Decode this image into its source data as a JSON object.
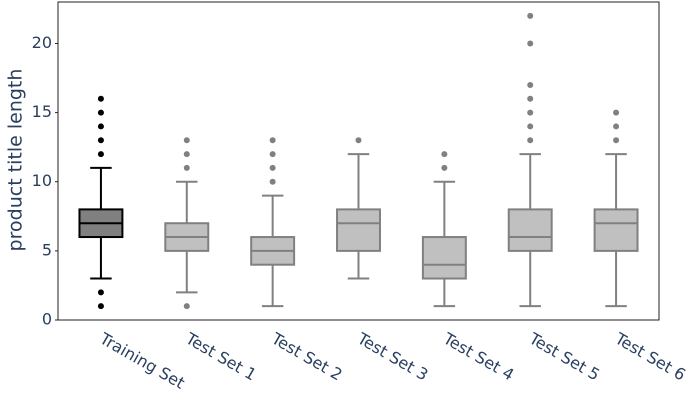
{
  "chart_data": {
    "type": "box",
    "y_label": "product title length",
    "categories": [
      "Training Set",
      "Test Set 1",
      "Test Set 2",
      "Test Set 3",
      "Test Set 4",
      "Test Set 5",
      "Test Set 6"
    ],
    "fill_colors": [
      "#808080",
      "#c0c0c0",
      "#c0c0c0",
      "#c0c0c0",
      "#c0c0c0",
      "#c0c0c0",
      "#c0c0c0"
    ],
    "edge_colors": [
      "#000000",
      "#808080",
      "#808080",
      "#808080",
      "#808080",
      "#808080",
      "#808080"
    ],
    "stats": [
      {
        "whislo": 3,
        "q1": 6,
        "med": 7,
        "q3": 8,
        "whishi": 11,
        "fliers": [
          1,
          2,
          12,
          13,
          14,
          15,
          16
        ]
      },
      {
        "whislo": 2,
        "q1": 5,
        "med": 6,
        "q3": 7,
        "whishi": 10,
        "fliers": [
          1,
          11,
          12,
          13
        ]
      },
      {
        "whislo": 1,
        "q1": 4,
        "med": 5,
        "q3": 6,
        "whishi": 9,
        "fliers": [
          10,
          11,
          12,
          13
        ]
      },
      {
        "whislo": 3,
        "q1": 5,
        "med": 7,
        "q3": 8,
        "whishi": 12,
        "fliers": [
          13
        ]
      },
      {
        "whislo": 1,
        "q1": 3,
        "med": 4,
        "q3": 6,
        "whishi": 10,
        "fliers": [
          11,
          12
        ]
      },
      {
        "whislo": 1,
        "q1": 5,
        "med": 6,
        "q3": 8,
        "whishi": 12,
        "fliers": [
          13,
          14,
          15,
          16,
          17,
          20,
          22
        ]
      },
      {
        "whislo": 1,
        "q1": 5,
        "med": 7,
        "q3": 8,
        "whishi": 12,
        "fliers": [
          13,
          14,
          15
        ]
      }
    ],
    "ylim": [
      0,
      23
    ],
    "yticks": [
      0,
      5,
      10,
      15,
      20
    ]
  }
}
